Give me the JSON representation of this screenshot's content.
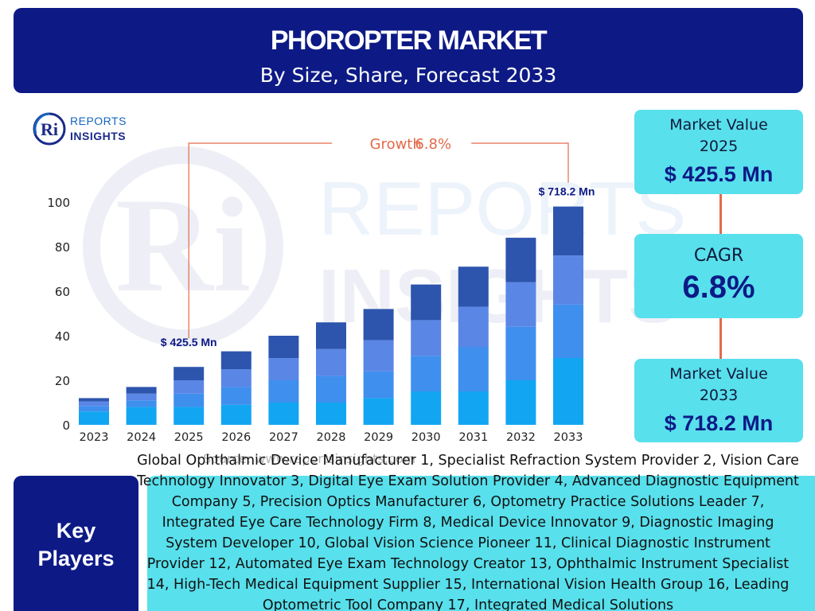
{
  "header": {
    "title": "PHOROPTER MARKET",
    "subtitle": "By Size, Share, Forecast 2033"
  },
  "logo": {
    "mark": "Ri",
    "line1": "REPORTS",
    "line2": "INSIGHTS"
  },
  "watermark": {
    "mark": "Ri",
    "line1": "REPORTS",
    "line2": "INSIGHTS"
  },
  "chart_data": {
    "type": "bar",
    "stacked": true,
    "categories": [
      "2023",
      "2024",
      "2025",
      "2026",
      "2027",
      "2028",
      "2029",
      "2030",
      "2031",
      "2032",
      "2033"
    ],
    "series": [
      {
        "values": [
          6,
          8,
          8,
          9,
          10,
          10,
          12,
          15,
          15,
          20,
          30
        ],
        "color": "#12a6f2"
      },
      {
        "values": [
          2.5,
          3,
          6,
          8,
          10,
          12,
          12,
          16,
          20,
          24,
          24
        ],
        "color": "#3f8fee"
      },
      {
        "values": [
          2,
          3,
          6,
          8,
          10,
          12,
          14,
          16,
          18,
          20,
          22
        ],
        "color": "#5a86e6"
      },
      {
        "values": [
          1.5,
          3,
          6,
          8,
          10,
          12,
          14,
          16,
          18,
          20,
          22
        ],
        "color": "#2d55ad"
      }
    ],
    "totals": [
      12,
      17,
      26,
      33,
      40,
      46,
      52,
      63,
      71,
      84,
      98
    ],
    "yticks": [
      0,
      20,
      40,
      60,
      80,
      100
    ],
    "ylim": [
      0,
      100
    ],
    "annotations": {
      "start_label": "$ 425.5 Mn",
      "start_category": "2025",
      "end_label": "$ 718.2 Mn",
      "end_category": "2033",
      "growth_label": "Growth",
      "growth_value": "6.8%"
    }
  },
  "cards": {
    "value_2025": {
      "label1": "Market Value",
      "label2": "2025",
      "value": "$ 425.5 Mn"
    },
    "cagr": {
      "label": "CAGR",
      "value": "6.8%"
    },
    "value_2033": {
      "label1": "Market Value",
      "label2": "2033",
      "value": "$ 718.2 Mn"
    }
  },
  "source_note": "Source: www.reportsinsights.com",
  "key_players": {
    "label_line1": "Key",
    "label_line2": "Players",
    "text": "Global Ophthalmic Device Manufacturer 1, Specialist Refraction System Provider 2, Vision Care Technology Innovator 3, Digital Eye Exam Solution Provider 4, Advanced Diagnostic Equipment Company 5, Precision Optics Manufacturer 6, Optometry Practice Solutions Leader 7, Integrated Eye Care Technology Firm 8, Medical Device Innovator 9, Diagnostic Imaging System Developer 10, Global Vision Science Pioneer 11, Clinical Diagnostic Instrument Provider 12, Automated Eye Exam Technology Creator 13, Ophthalmic Instrument Specialist 14, High-Tech Medical Equipment Supplier 15, International Vision Health Group 16, Leading Optometric Tool Company 17, Integrated Medical Solutions"
  },
  "colors": {
    "navy": "#0d1a86",
    "cyan": "#58e0ec",
    "accent": "#e26a4a"
  }
}
